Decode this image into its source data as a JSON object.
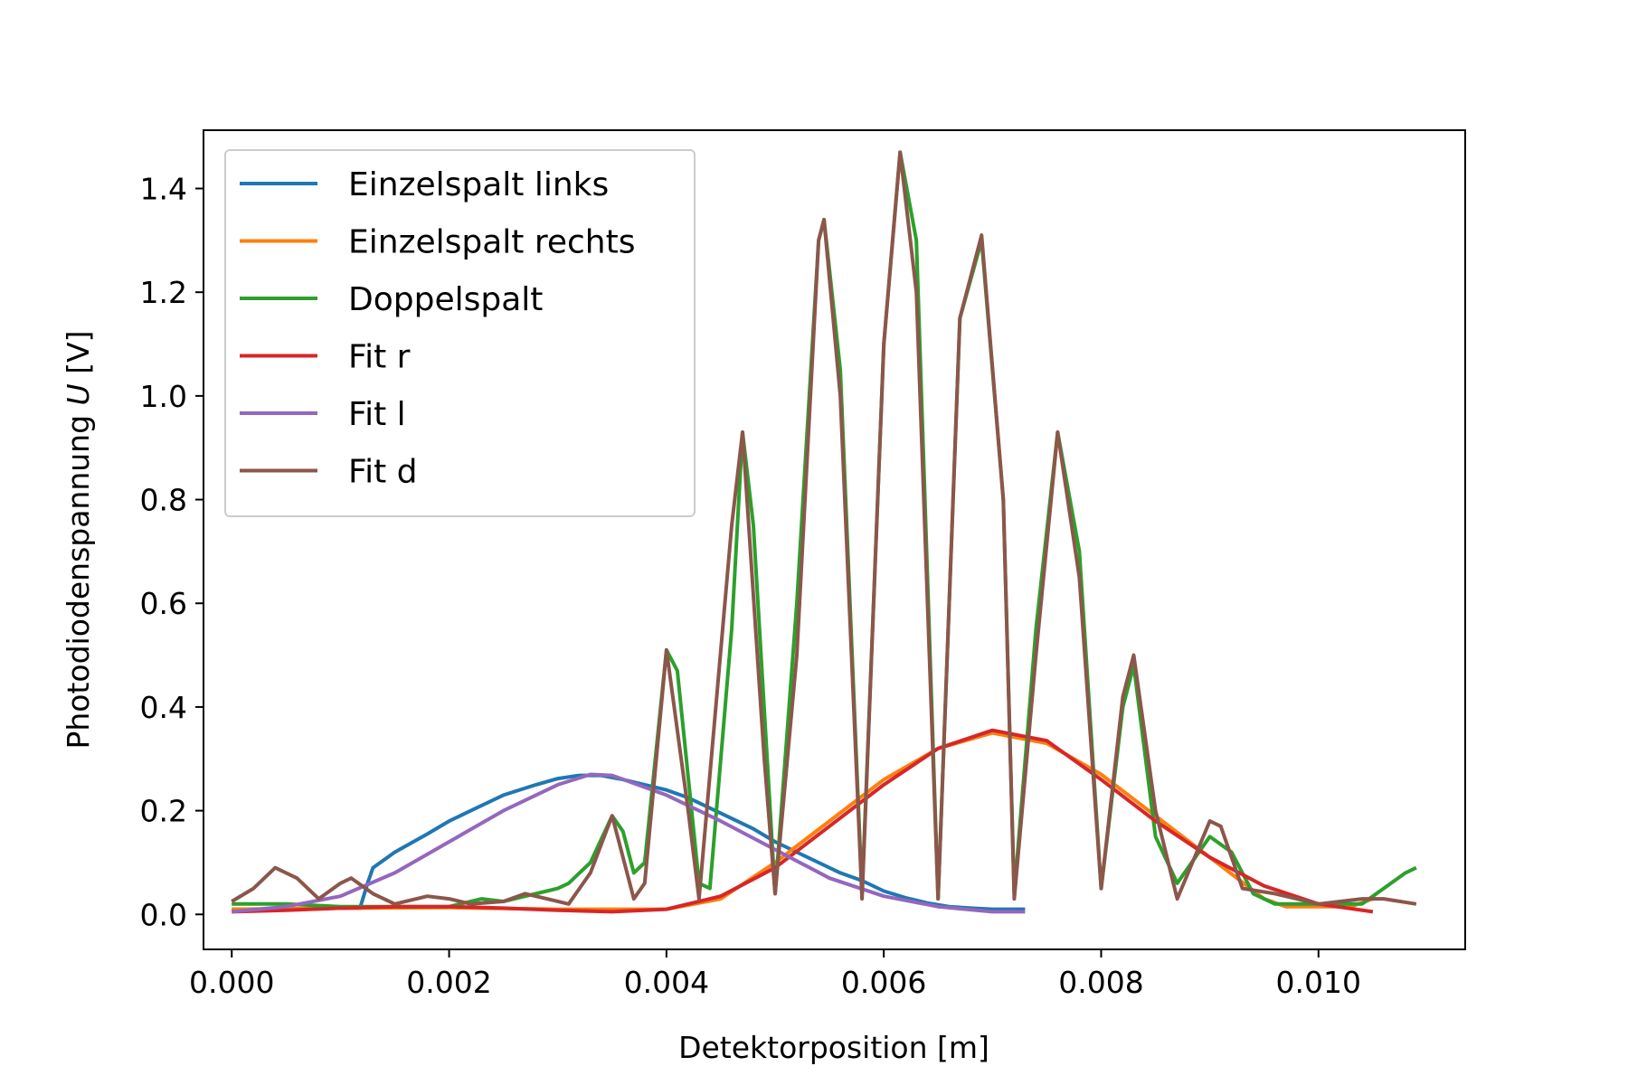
{
  "chart_data": {
    "type": "line",
    "xlabel": "Detektorposition [m]",
    "ylabel_prefix": "Photodiodenspannung ",
    "ylabel_var": "U",
    "ylabel_suffix": " [V]",
    "xlim": [
      -0.00026,
      0.01135
    ],
    "ylim": [
      -0.0675,
      1.5125
    ],
    "xticks": [
      0.0,
      0.002,
      0.004,
      0.006,
      0.008,
      0.01
    ],
    "xtick_labels": [
      "0.000",
      "0.002",
      "0.004",
      "0.006",
      "0.008",
      "0.010"
    ],
    "yticks": [
      0.0,
      0.2,
      0.4,
      0.6,
      0.8,
      1.0,
      1.2,
      1.4
    ],
    "ytick_labels": [
      "0.0",
      "0.2",
      "0.4",
      "0.6",
      "0.8",
      "1.0",
      "1.2",
      "1.4"
    ],
    "legend_position": "top-left",
    "series": [
      {
        "name": "Einzelspalt links",
        "color": "#1f77b4",
        "points": [
          [
            0.0,
            0.01
          ],
          [
            0.0005,
            0.01
          ],
          [
            0.001,
            0.012
          ],
          [
            0.00118,
            0.012
          ],
          [
            0.00125,
            0.06
          ],
          [
            0.0013,
            0.09
          ],
          [
            0.0015,
            0.12
          ],
          [
            0.0018,
            0.155
          ],
          [
            0.002,
            0.18
          ],
          [
            0.0022,
            0.2
          ],
          [
            0.0025,
            0.23
          ],
          [
            0.0028,
            0.25
          ],
          [
            0.003,
            0.262
          ],
          [
            0.0032,
            0.268
          ],
          [
            0.0034,
            0.268
          ],
          [
            0.0036,
            0.26
          ],
          [
            0.0038,
            0.25
          ],
          [
            0.004,
            0.24
          ],
          [
            0.0042,
            0.225
          ],
          [
            0.0044,
            0.205
          ],
          [
            0.0046,
            0.185
          ],
          [
            0.0048,
            0.165
          ],
          [
            0.005,
            0.14
          ],
          [
            0.0052,
            0.12
          ],
          [
            0.0054,
            0.1
          ],
          [
            0.0056,
            0.08
          ],
          [
            0.0058,
            0.065
          ],
          [
            0.006,
            0.045
          ],
          [
            0.0062,
            0.032
          ],
          [
            0.0064,
            0.022
          ],
          [
            0.0066,
            0.015
          ],
          [
            0.0068,
            0.012
          ],
          [
            0.007,
            0.01
          ],
          [
            0.0072,
            0.01
          ],
          [
            0.0073,
            0.01
          ]
        ]
      },
      {
        "name": "Einzelspalt rechts",
        "color": "#ff7f0e",
        "points": [
          [
            0.0,
            0.01
          ],
          [
            0.001,
            0.012
          ],
          [
            0.002,
            0.013
          ],
          [
            0.003,
            0.01
          ],
          [
            0.0035,
            0.01
          ],
          [
            0.004,
            0.01
          ],
          [
            0.0045,
            0.03
          ],
          [
            0.005,
            0.1
          ],
          [
            0.0055,
            0.18
          ],
          [
            0.006,
            0.26
          ],
          [
            0.0065,
            0.32
          ],
          [
            0.007,
            0.35
          ],
          [
            0.0075,
            0.33
          ],
          [
            0.008,
            0.27
          ],
          [
            0.0085,
            0.19
          ],
          [
            0.009,
            0.11
          ],
          [
            0.0095,
            0.03
          ],
          [
            0.0097,
            0.015
          ],
          [
            0.01,
            0.015
          ],
          [
            0.0103,
            0.015
          ],
          [
            0.0105,
            0.03
          ]
        ]
      },
      {
        "name": "Doppelspalt",
        "color": "#2ca02c",
        "points": [
          [
            0.0,
            0.02
          ],
          [
            0.0005,
            0.02
          ],
          [
            0.001,
            0.015
          ],
          [
            0.0015,
            0.015
          ],
          [
            0.002,
            0.015
          ],
          [
            0.0022,
            0.025
          ],
          [
            0.0023,
            0.03
          ],
          [
            0.0025,
            0.025
          ],
          [
            0.0027,
            0.035
          ],
          [
            0.0029,
            0.045
          ],
          [
            0.003,
            0.05
          ],
          [
            0.0031,
            0.06
          ],
          [
            0.0033,
            0.1
          ],
          [
            0.0035,
            0.19
          ],
          [
            0.0036,
            0.16
          ],
          [
            0.0037,
            0.08
          ],
          [
            0.0038,
            0.1
          ],
          [
            0.004,
            0.51
          ],
          [
            0.0041,
            0.47
          ],
          [
            0.0043,
            0.06
          ],
          [
            0.0044,
            0.05
          ],
          [
            0.0046,
            0.55
          ],
          [
            0.0047,
            0.93
          ],
          [
            0.0048,
            0.75
          ],
          [
            0.005,
            0.04
          ],
          [
            0.0052,
            0.6
          ],
          [
            0.0054,
            1.3
          ],
          [
            0.00545,
            1.34
          ],
          [
            0.0056,
            1.05
          ],
          [
            0.0058,
            0.04
          ],
          [
            0.006,
            1.1
          ],
          [
            0.00615,
            1.47
          ],
          [
            0.0063,
            1.3
          ],
          [
            0.0065,
            0.03
          ],
          [
            0.0067,
            1.15
          ],
          [
            0.0069,
            1.3
          ],
          [
            0.0071,
            0.8
          ],
          [
            0.0072,
            0.04
          ],
          [
            0.0074,
            0.55
          ],
          [
            0.0076,
            0.93
          ],
          [
            0.0078,
            0.7
          ],
          [
            0.008,
            0.05
          ],
          [
            0.0082,
            0.4
          ],
          [
            0.0083,
            0.48
          ],
          [
            0.0085,
            0.15
          ],
          [
            0.0087,
            0.06
          ],
          [
            0.009,
            0.15
          ],
          [
            0.0092,
            0.12
          ],
          [
            0.0094,
            0.04
          ],
          [
            0.0096,
            0.02
          ],
          [
            0.01,
            0.02
          ],
          [
            0.0104,
            0.02
          ],
          [
            0.0106,
            0.05
          ],
          [
            0.0108,
            0.08
          ],
          [
            0.0109,
            0.09
          ]
        ]
      },
      {
        "name": "Fit r",
        "color": "#d62728",
        "points": [
          [
            0.0,
            0.005
          ],
          [
            0.0005,
            0.008
          ],
          [
            0.001,
            0.012
          ],
          [
            0.0015,
            0.015
          ],
          [
            0.002,
            0.015
          ],
          [
            0.0025,
            0.012
          ],
          [
            0.003,
            0.008
          ],
          [
            0.0035,
            0.005
          ],
          [
            0.004,
            0.01
          ],
          [
            0.0045,
            0.035
          ],
          [
            0.005,
            0.09
          ],
          [
            0.0055,
            0.17
          ],
          [
            0.006,
            0.25
          ],
          [
            0.0065,
            0.32
          ],
          [
            0.007,
            0.355
          ],
          [
            0.0075,
            0.335
          ],
          [
            0.008,
            0.26
          ],
          [
            0.0085,
            0.18
          ],
          [
            0.009,
            0.11
          ],
          [
            0.0095,
            0.055
          ],
          [
            0.01,
            0.02
          ],
          [
            0.0105,
            0.005
          ]
        ]
      },
      {
        "name": "Fit l",
        "color": "#9467bd",
        "points": [
          [
            0.0,
            0.005
          ],
          [
            0.0005,
            0.015
          ],
          [
            0.001,
            0.035
          ],
          [
            0.0015,
            0.08
          ],
          [
            0.002,
            0.14
          ],
          [
            0.0025,
            0.2
          ],
          [
            0.003,
            0.25
          ],
          [
            0.0033,
            0.27
          ],
          [
            0.0035,
            0.268
          ],
          [
            0.004,
            0.23
          ],
          [
            0.0045,
            0.18
          ],
          [
            0.005,
            0.125
          ],
          [
            0.0055,
            0.07
          ],
          [
            0.006,
            0.035
          ],
          [
            0.0065,
            0.015
          ],
          [
            0.007,
            0.005
          ],
          [
            0.0073,
            0.005
          ]
        ]
      },
      {
        "name": "Fit d",
        "color": "#8c564b",
        "points": [
          [
            0.0,
            0.025
          ],
          [
            0.0002,
            0.05
          ],
          [
            0.0004,
            0.09
          ],
          [
            0.0006,
            0.07
          ],
          [
            0.0008,
            0.03
          ],
          [
            0.001,
            0.06
          ],
          [
            0.0011,
            0.07
          ],
          [
            0.0013,
            0.04
          ],
          [
            0.0015,
            0.02
          ],
          [
            0.0018,
            0.035
          ],
          [
            0.002,
            0.03
          ],
          [
            0.0022,
            0.02
          ],
          [
            0.0025,
            0.025
          ],
          [
            0.0027,
            0.04
          ],
          [
            0.0029,
            0.03
          ],
          [
            0.0031,
            0.02
          ],
          [
            0.0033,
            0.08
          ],
          [
            0.0035,
            0.19
          ],
          [
            0.0037,
            0.03
          ],
          [
            0.0038,
            0.06
          ],
          [
            0.004,
            0.51
          ],
          [
            0.0042,
            0.2
          ],
          [
            0.0043,
            0.03
          ],
          [
            0.0046,
            0.75
          ],
          [
            0.0047,
            0.93
          ],
          [
            0.0049,
            0.3
          ],
          [
            0.005,
            0.04
          ],
          [
            0.0052,
            0.5
          ],
          [
            0.0054,
            1.3
          ],
          [
            0.00545,
            1.34
          ],
          [
            0.0056,
            1.0
          ],
          [
            0.0058,
            0.03
          ],
          [
            0.006,
            1.1
          ],
          [
            0.00615,
            1.47
          ],
          [
            0.0063,
            1.2
          ],
          [
            0.0065,
            0.03
          ],
          [
            0.0067,
            1.15
          ],
          [
            0.0069,
            1.31
          ],
          [
            0.0071,
            0.8
          ],
          [
            0.0072,
            0.03
          ],
          [
            0.0074,
            0.5
          ],
          [
            0.0076,
            0.93
          ],
          [
            0.0078,
            0.65
          ],
          [
            0.008,
            0.05
          ],
          [
            0.0082,
            0.42
          ],
          [
            0.0083,
            0.5
          ],
          [
            0.0085,
            0.2
          ],
          [
            0.0087,
            0.03
          ],
          [
            0.009,
            0.18
          ],
          [
            0.0091,
            0.17
          ],
          [
            0.0093,
            0.05
          ],
          [
            0.0096,
            0.04
          ],
          [
            0.0098,
            0.03
          ],
          [
            0.01,
            0.02
          ],
          [
            0.0104,
            0.03
          ],
          [
            0.0106,
            0.03
          ],
          [
            0.0109,
            0.02
          ]
        ]
      }
    ]
  }
}
